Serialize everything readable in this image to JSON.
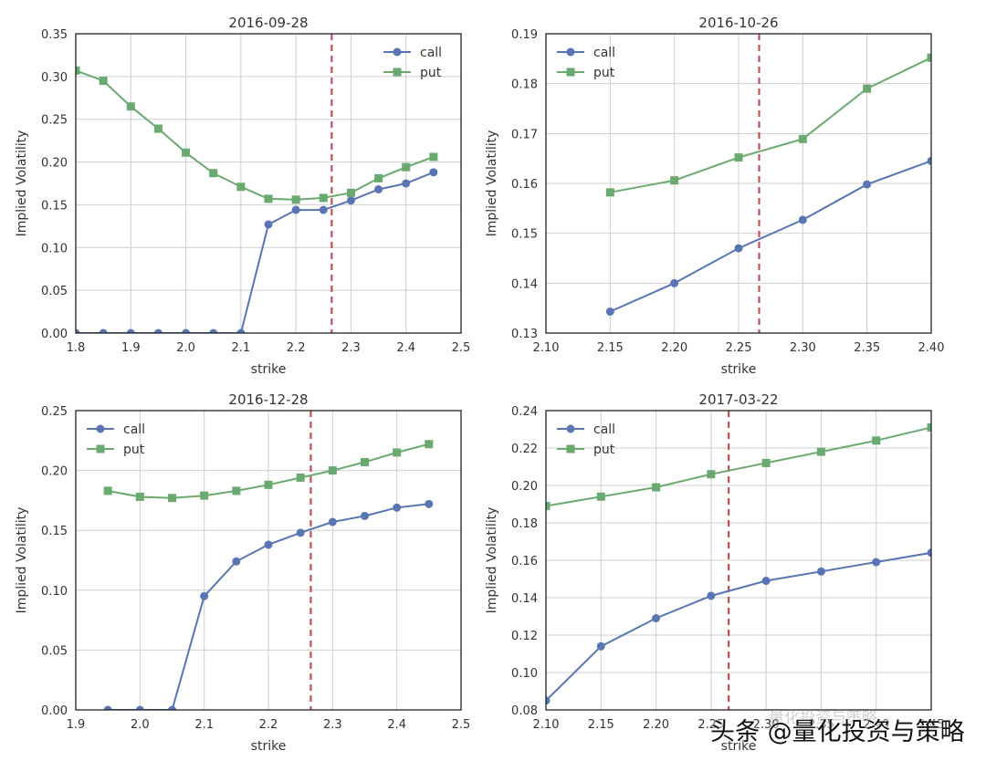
{
  "chart_data": [
    {
      "type": "line",
      "title": "2016-09-28",
      "xlabel": "strike",
      "ylabel": "Implied Volatility",
      "xlim": [
        1.8,
        2.5
      ],
      "ylim": [
        0.0,
        0.35
      ],
      "xticks": [
        "1.8",
        "1.9",
        "2.0",
        "2.1",
        "2.2",
        "2.3",
        "2.4",
        "2.5"
      ],
      "yticks": [
        "0.00",
        "0.05",
        "0.10",
        "0.15",
        "0.20",
        "0.25",
        "0.30",
        "0.35"
      ],
      "vline": 2.265,
      "legend": "top-right",
      "grid": true,
      "series": [
        {
          "name": "call",
          "marker": "circle",
          "color": "#5975b4",
          "x": [
            1.8,
            1.85,
            1.9,
            1.95,
            2.0,
            2.05,
            2.1,
            2.15,
            2.2,
            2.25,
            2.3,
            2.35,
            2.4,
            2.45
          ],
          "y": [
            0.0,
            0.0,
            0.0,
            0.0,
            0.0,
            0.0,
            0.0,
            0.127,
            0.144,
            0.144,
            0.155,
            0.168,
            0.175,
            0.188
          ]
        },
        {
          "name": "put",
          "marker": "square",
          "color": "#6aa96f",
          "x": [
            1.8,
            1.85,
            1.9,
            1.95,
            2.0,
            2.05,
            2.1,
            2.15,
            2.2,
            2.25,
            2.3,
            2.35,
            2.4,
            2.45
          ],
          "y": [
            0.307,
            0.295,
            0.265,
            0.239,
            0.211,
            0.187,
            0.171,
            0.157,
            0.156,
            0.158,
            0.164,
            0.181,
            0.194,
            0.206
          ]
        }
      ]
    },
    {
      "type": "line",
      "title": "2016-10-26",
      "xlabel": "strike",
      "ylabel": "Implied Volatility",
      "xlim": [
        2.1,
        2.4
      ],
      "ylim": [
        0.13,
        0.19
      ],
      "xticks": [
        "2.10",
        "2.15",
        "2.20",
        "2.25",
        "2.30",
        "2.35",
        "2.40"
      ],
      "yticks": [
        "0.13",
        "0.14",
        "0.15",
        "0.16",
        "0.17",
        "0.18",
        "0.19"
      ],
      "vline": 2.266,
      "legend": "top-left",
      "grid": true,
      "series": [
        {
          "name": "call",
          "marker": "circle",
          "color": "#5975b4",
          "x": [
            2.15,
            2.2,
            2.25,
            2.3,
            2.35,
            2.4
          ],
          "y": [
            0.1343,
            0.14,
            0.147,
            0.1527,
            0.1598,
            0.1645
          ]
        },
        {
          "name": "put",
          "marker": "square",
          "color": "#6aa96f",
          "x": [
            2.15,
            2.2,
            2.25,
            2.3,
            2.35,
            2.4
          ],
          "y": [
            0.1582,
            0.1606,
            0.1652,
            0.1689,
            0.179,
            0.1852
          ]
        }
      ]
    },
    {
      "type": "line",
      "title": "2016-12-28",
      "xlabel": "strike",
      "ylabel": "Implied Volatility",
      "xlim": [
        1.9,
        2.5
      ],
      "ylim": [
        0.0,
        0.25
      ],
      "xticks": [
        "1.9",
        "2.0",
        "2.1",
        "2.2",
        "2.3",
        "2.4",
        "2.5"
      ],
      "yticks": [
        "0.00",
        "0.05",
        "0.10",
        "0.15",
        "0.20",
        "0.25"
      ],
      "vline": 2.266,
      "legend": "top-left",
      "grid": true,
      "series": [
        {
          "name": "call",
          "marker": "circle",
          "color": "#5975b4",
          "x": [
            1.95,
            2.0,
            2.05,
            2.1,
            2.15,
            2.2,
            2.25,
            2.3,
            2.35,
            2.4,
            2.45
          ],
          "y": [
            0.0,
            0.0,
            0.0,
            0.095,
            0.124,
            0.138,
            0.148,
            0.157,
            0.162,
            0.169,
            0.172
          ]
        },
        {
          "name": "put",
          "marker": "square",
          "color": "#6aa96f",
          "x": [
            1.95,
            2.0,
            2.05,
            2.1,
            2.15,
            2.2,
            2.25,
            2.3,
            2.35,
            2.4,
            2.45
          ],
          "y": [
            0.183,
            0.178,
            0.177,
            0.179,
            0.183,
            0.188,
            0.194,
            0.2,
            0.207,
            0.215,
            0.222
          ]
        }
      ]
    },
    {
      "type": "line",
      "title": "2017-03-22",
      "xlabel": "strike",
      "ylabel": "Implied Volatility",
      "xlim": [
        2.1,
        2.45
      ],
      "ylim": [
        0.08,
        0.24
      ],
      "xticks": [
        "2.10",
        "2.15",
        "2.20",
        "2.25",
        "2.30",
        "2.35",
        "2.40",
        "2.45"
      ],
      "yticks": [
        "0.08",
        "0.10",
        "0.12",
        "0.14",
        "0.16",
        "0.18",
        "0.20",
        "0.22",
        "0.24"
      ],
      "vline": 2.266,
      "legend": "top-left",
      "grid": true,
      "series": [
        {
          "name": "call",
          "marker": "circle",
          "color": "#5975b4",
          "x": [
            2.1,
            2.15,
            2.2,
            2.25,
            2.3,
            2.35,
            2.4,
            2.45
          ],
          "y": [
            0.085,
            0.114,
            0.129,
            0.141,
            0.149,
            0.154,
            0.159,
            0.164
          ]
        },
        {
          "name": "put",
          "marker": "square",
          "color": "#6aa96f",
          "x": [
            2.1,
            2.15,
            2.2,
            2.25,
            2.3,
            2.35,
            2.4,
            2.45
          ],
          "y": [
            0.189,
            0.194,
            0.199,
            0.206,
            0.212,
            0.218,
            0.224,
            0.231
          ]
        }
      ]
    }
  ],
  "watermark": {
    "main": "头条 @量化投资与策略",
    "faint": "量化投资与策略"
  },
  "colors": {
    "vline": "#c44e52",
    "grid": "#cfcfcf",
    "axis": "#222222",
    "text": "#333333"
  }
}
